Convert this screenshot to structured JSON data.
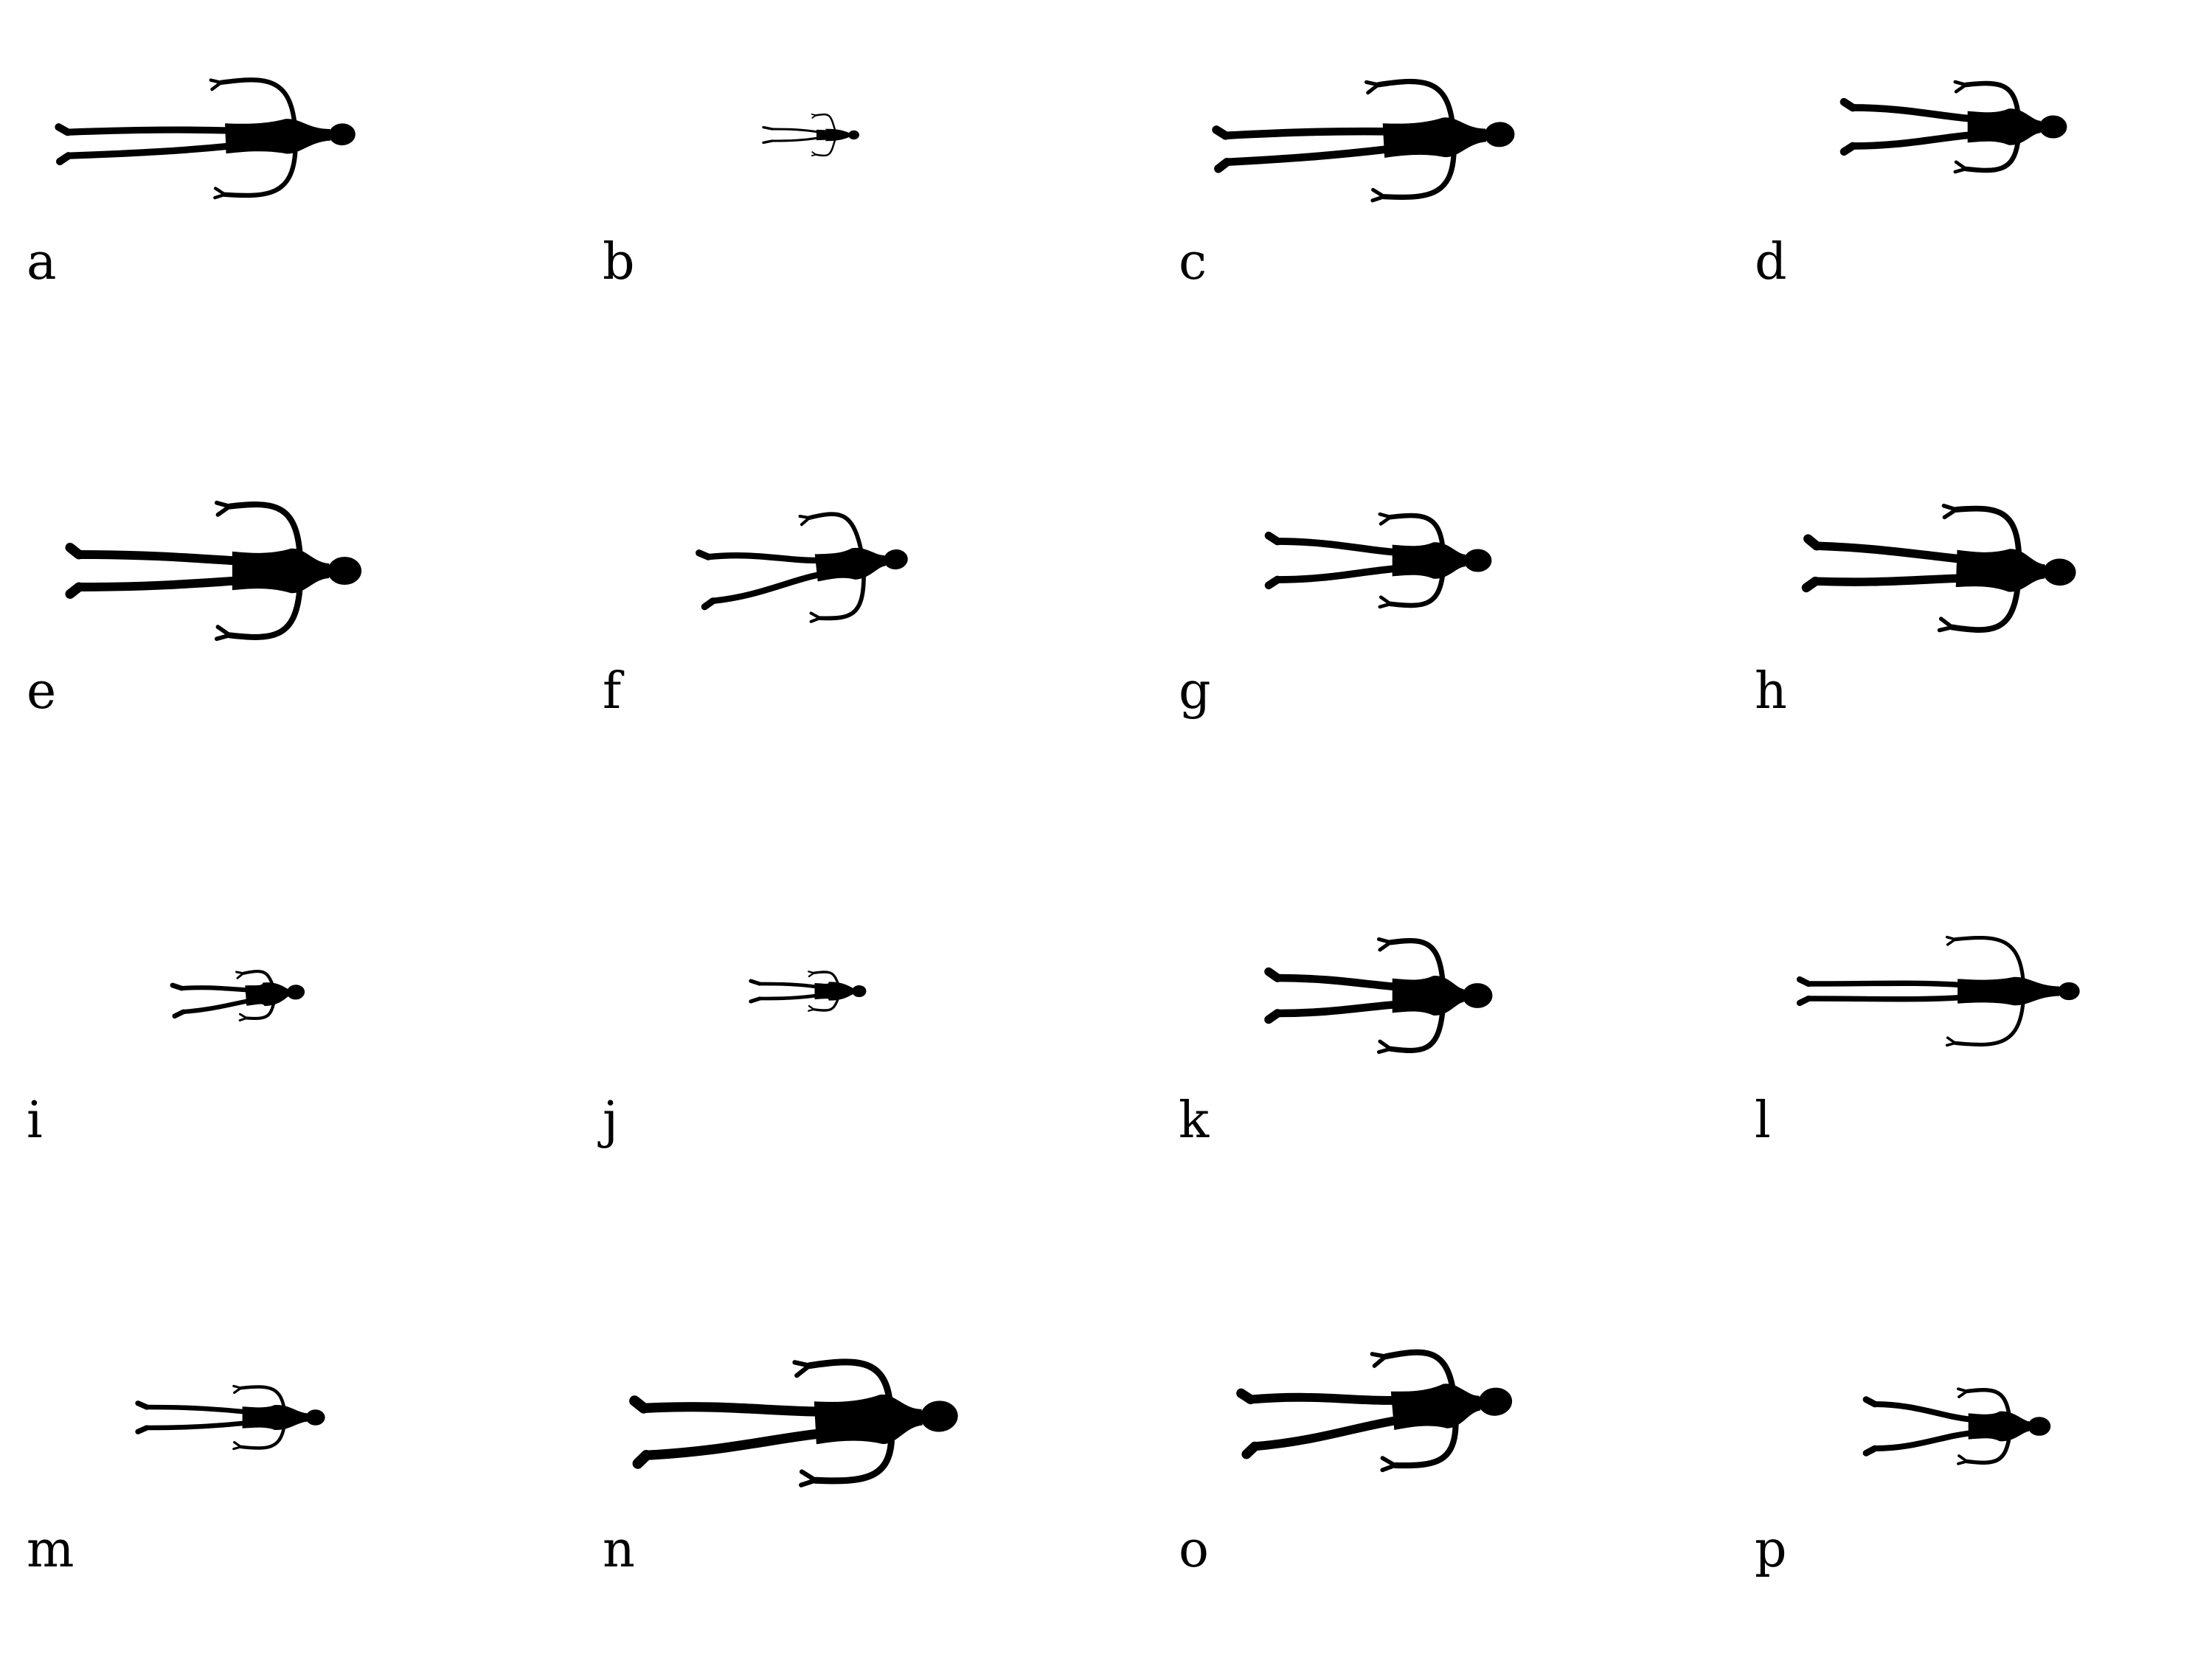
{
  "panels": [
    {
      "label": "a"
    },
    {
      "label": "b"
    },
    {
      "label": "c"
    },
    {
      "label": "d"
    },
    {
      "label": "e"
    },
    {
      "label": "f"
    },
    {
      "label": "g"
    },
    {
      "label": "h"
    },
    {
      "label": "i"
    },
    {
      "label": "j"
    },
    {
      "label": "k"
    },
    {
      "label": "l"
    },
    {
      "label": "m"
    },
    {
      "label": "n"
    },
    {
      "label": "o"
    },
    {
      "label": "p"
    }
  ],
  "colors": {
    "silhouette": "#000000",
    "background": "#ffffff"
  },
  "icon": "human-silhouette-icon"
}
